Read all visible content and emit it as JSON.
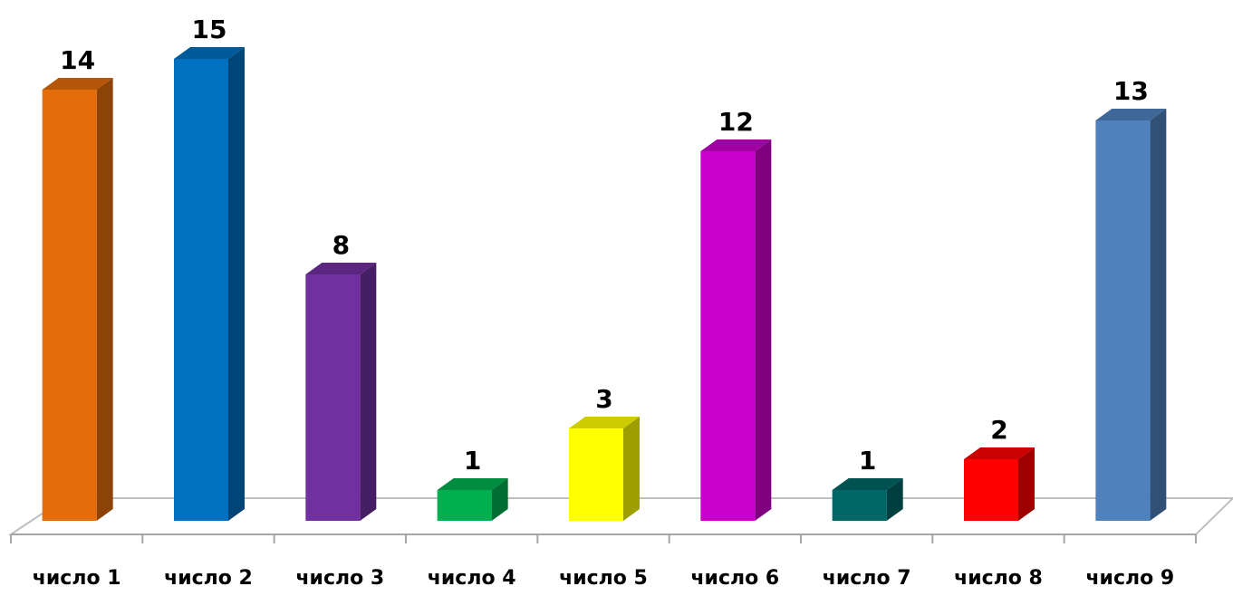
{
  "chart_data": {
    "type": "bar",
    "style": "3d-column",
    "categories": [
      "число 1",
      "число 2",
      "число 3",
      "число 4",
      "число 5",
      "число 6",
      "число 7",
      "число 8",
      "число 9"
    ],
    "values": [
      14,
      15,
      8,
      1,
      3,
      12,
      1,
      2,
      13
    ],
    "value_labels": [
      "14",
      "15",
      "8",
      "1",
      "3",
      "12",
      "1",
      "2",
      "13"
    ],
    "colors": [
      "#E46C0A",
      "#0070C0",
      "#7030A0",
      "#00B050",
      "#FFFF00",
      "#CC00CC",
      "#006666",
      "#FF0000",
      "#4F81BD"
    ],
    "title": "",
    "xlabel": "",
    "ylabel": "",
    "ylim": [
      0,
      15
    ],
    "grid": false,
    "legend": "none",
    "axis_color": "#A6A6A6"
  }
}
